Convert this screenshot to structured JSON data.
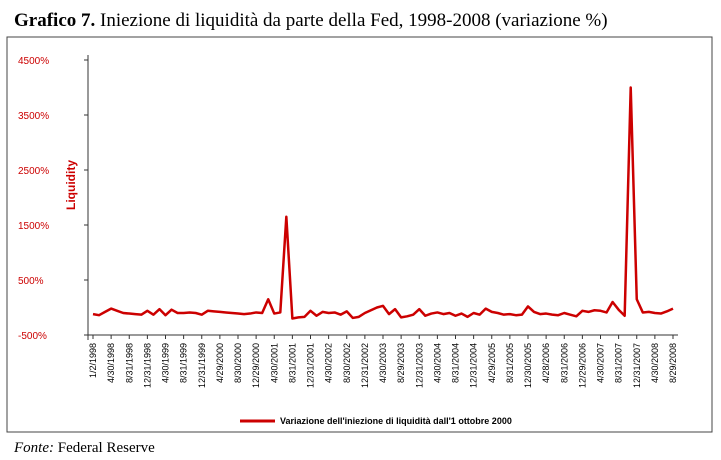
{
  "chart_data": {
    "type": "line",
    "title_label": "Grafico 7.",
    "title": "Iniezione di liquidità da parte della Fed, 1998-2008 (variazione %)",
    "y_label": "Liquidity",
    "source_label": "Fonte:",
    "source": "Federal Reserve",
    "ylim": [
      -500,
      4500
    ],
    "yticks": [
      {
        "value": -500,
        "label": "-500%"
      },
      {
        "value": 500,
        "label": "500%"
      },
      {
        "value": 1500,
        "label": "1500%"
      },
      {
        "value": 2500,
        "label": "2500%"
      },
      {
        "value": 3500,
        "label": "3500%"
      },
      {
        "value": 4500,
        "label": "4500%"
      }
    ],
    "categories": [
      "1/2/1998",
      null,
      null,
      "4/30/1998",
      null,
      null,
      "8/31/1998",
      null,
      null,
      "12/31/1998",
      null,
      null,
      "4/30/1999",
      null,
      null,
      "8/31/1999",
      null,
      null,
      "12/31/1999",
      null,
      null,
      "4/29/2000",
      null,
      null,
      "8/30/2000",
      null,
      null,
      "12/29/2000",
      null,
      null,
      "4/30/2001",
      null,
      null,
      "8/31/2001",
      null,
      null,
      "12/31/2001",
      null,
      null,
      "4/30/2002",
      null,
      null,
      "8/30/2002",
      null,
      null,
      "12/31/2002",
      null,
      null,
      "4/30/2003",
      null,
      null,
      "8/29/2003",
      null,
      null,
      "12/31/2003",
      null,
      null,
      "4/30/2004",
      null,
      null,
      "8/31/2004",
      null,
      null,
      "12/31/2004",
      null,
      null,
      "4/29/2005",
      null,
      null,
      "8/31/2005",
      null,
      null,
      "12/30/2005",
      null,
      null,
      "4/28/2006",
      null,
      null,
      "8/31/2006",
      null,
      null,
      "12/29/2006",
      null,
      null,
      "4/30/2007",
      null,
      null,
      "8/31/2007",
      null,
      null,
      "12/31/2007",
      null,
      null,
      "4/30/2008",
      null,
      null,
      "8/29/2008"
    ],
    "series": [
      {
        "name": "Variazione dell'iniezione di liquidità dall'1 ottobre 2000",
        "color": "#cc0000",
        "values": [
          -120,
          -140,
          -80,
          -20,
          -60,
          -100,
          -110,
          -120,
          -130,
          -60,
          -130,
          -30,
          -140,
          -40,
          -100,
          -100,
          -90,
          -100,
          -130,
          -60,
          -70,
          -80,
          -90,
          -100,
          -110,
          -120,
          -110,
          -90,
          -100,
          150,
          -110,
          -90,
          1650,
          -200,
          -180,
          -170,
          -60,
          -150,
          -80,
          -100,
          -90,
          -130,
          -70,
          -190,
          -170,
          -100,
          -50,
          0,
          30,
          -120,
          -30,
          -180,
          -160,
          -130,
          -30,
          -150,
          -110,
          -90,
          -120,
          -100,
          -150,
          -110,
          -170,
          -100,
          -130,
          -20,
          -80,
          -100,
          -130,
          -120,
          -140,
          -130,
          20,
          -80,
          -120,
          -110,
          -130,
          -140,
          -100,
          -130,
          -160,
          -60,
          -80,
          -50,
          -60,
          -90,
          100,
          -40,
          -150,
          4000,
          150,
          -90,
          -80,
          -100,
          -110,
          -70,
          -20
        ]
      }
    ]
  }
}
